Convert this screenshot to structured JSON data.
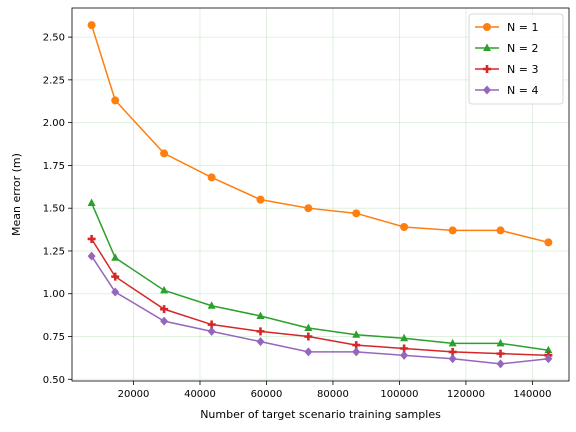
{
  "chart_data": {
    "type": "line",
    "title": "",
    "xlabel": "Number of target scenario training samples",
    "ylabel": "Mean error (m)",
    "xlim": [
      1500,
      151000
    ],
    "ylim": [
      0.49,
      2.67
    ],
    "xticks": [
      20000,
      40000,
      60000,
      80000,
      100000,
      120000,
      140000
    ],
    "yticks": [
      0.5,
      0.75,
      1.0,
      1.25,
      1.5,
      1.75,
      2.0,
      2.25,
      2.5
    ],
    "xtick_labels": [
      "20000",
      "40000",
      "60000",
      "80000",
      "100000",
      "120000",
      "140000"
    ],
    "ytick_labels": [
      "0.50",
      "0.75",
      "1.00",
      "1.25",
      "1.50",
      "1.75",
      "2.00",
      "2.25",
      "2.50"
    ],
    "grid": true,
    "legend_position": "top-right",
    "x": [
      7400,
      14500,
      29200,
      43500,
      58200,
      72600,
      87000,
      101400,
      116000,
      130400,
      144800
    ],
    "series": [
      {
        "name": "N = 1",
        "color": "#ff7f0e",
        "marker": "circle",
        "values": [
          2.57,
          2.13,
          1.82,
          1.68,
          1.55,
          1.5,
          1.47,
          1.39,
          1.37,
          1.37,
          1.3
        ]
      },
      {
        "name": "N = 2",
        "color": "#2ca02c",
        "marker": "triangle",
        "values": [
          1.53,
          1.21,
          1.02,
          0.93,
          0.87,
          0.8,
          0.76,
          0.74,
          0.71,
          0.71,
          0.67
        ]
      },
      {
        "name": "N = 3",
        "color": "#d62728",
        "marker": "plus",
        "values": [
          1.32,
          1.1,
          0.91,
          0.82,
          0.78,
          0.75,
          0.7,
          0.68,
          0.66,
          0.65,
          0.64
        ]
      },
      {
        "name": "N = 4",
        "color": "#9467bd",
        "marker": "diamond",
        "values": [
          1.22,
          1.01,
          0.84,
          0.78,
          0.72,
          0.66,
          0.66,
          0.64,
          0.62,
          0.59,
          0.62
        ]
      }
    ]
  }
}
